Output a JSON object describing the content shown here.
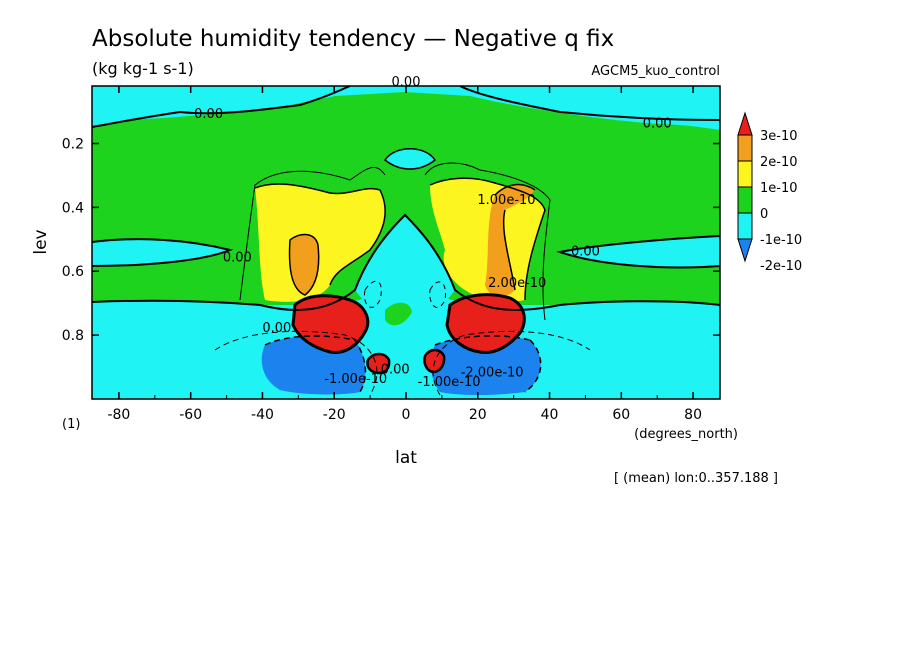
{
  "chart_data": {
    "type": "contour",
    "title": "Absolute humidity tendency — Negative q fix",
    "units": "(kg kg-1 s-1)",
    "experiment": "AGCM5_kuo_control",
    "xlabel": "lat",
    "xunits": "(degrees_north)",
    "ylabel": "lev",
    "yunits": "(1)",
    "xlim": [
      -87.5,
      87.5
    ],
    "ylim": [
      1.0,
      0.02
    ],
    "x_ticks": [
      -80,
      -60,
      -40,
      -20,
      0,
      20,
      40,
      60,
      80
    ],
    "y_ticks": [
      0.2,
      0.4,
      0.6,
      0.8
    ],
    "annotation": "[ (mean) lon:0..357.188 ]",
    "colorbar": {
      "labels": [
        "3e-10",
        "2e-10",
        "1e-10",
        "0",
        "-1e-10",
        "-2e-10"
      ],
      "colors": [
        "#e8201c",
        "#f39f1e",
        "#fdf51f",
        "#1ed31e",
        "#1ff3f3",
        "#1b82ee"
      ]
    },
    "contour_labels": [
      {
        "text": "0.00",
        "x": 0,
        "y": 0.02
      },
      {
        "text": "0.00",
        "x": -55,
        "y": 0.12
      },
      {
        "text": "0.00",
        "x": 70,
        "y": 0.15
      },
      {
        "text": "0.00",
        "x": -47,
        "y": 0.57
      },
      {
        "text": "0.00",
        "x": 50,
        "y": 0.55
      },
      {
        "text": "1.00e-10",
        "x": 28,
        "y": 0.39
      },
      {
        "text": "2.00e-10",
        "x": 31,
        "y": 0.65
      },
      {
        "text": "0.00",
        "x": -36,
        "y": 0.79
      },
      {
        "text": "-1.00e-10",
        "x": -14,
        "y": 0.95
      },
      {
        "text": "0.00",
        "x": -3,
        "y": 0.92
      },
      {
        "text": "-1.00e-10",
        "x": 12,
        "y": 0.96
      },
      {
        "text": "-2.00e-10",
        "x": 24,
        "y": 0.93
      }
    ]
  }
}
